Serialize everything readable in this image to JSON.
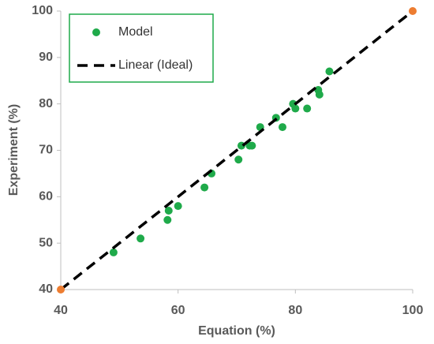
{
  "chart_data": {
    "type": "scatter",
    "x_label": "Equation (%)",
    "y_label": "Experiment (%)",
    "xlim": [
      40,
      100
    ],
    "xticks": [
      40,
      60,
      80,
      100
    ],
    "ylim": [
      40,
      100
    ],
    "yticks": [
      40,
      50,
      60,
      70,
      80,
      90,
      100
    ],
    "legend": "upper left",
    "series": [
      {
        "name": "Model",
        "color": "#1faa4a",
        "mode": "markers",
        "x": [
          49.0,
          53.6,
          58.2,
          58.4,
          60.0,
          64.5,
          65.7,
          70.3,
          70.8,
          72.2,
          72.6,
          74.0,
          76.7,
          77.8,
          79.6,
          80.0,
          82.0,
          83.9,
          84.1,
          85.8
        ],
        "values": [
          48,
          51,
          55,
          57,
          58,
          62,
          65,
          68,
          71,
          71,
          71,
          75,
          77,
          75,
          80,
          79,
          79,
          83,
          82,
          87
        ]
      },
      {
        "name": "Linear (Ideal)",
        "color": "#000000",
        "mode": "dashed-line",
        "x": [
          40,
          100
        ],
        "values": [
          40,
          100
        ]
      },
      {
        "color": "#ed7d31",
        "mode": "markers",
        "x": [
          40,
          100
        ],
        "values": [
          40,
          100
        ]
      }
    ]
  }
}
